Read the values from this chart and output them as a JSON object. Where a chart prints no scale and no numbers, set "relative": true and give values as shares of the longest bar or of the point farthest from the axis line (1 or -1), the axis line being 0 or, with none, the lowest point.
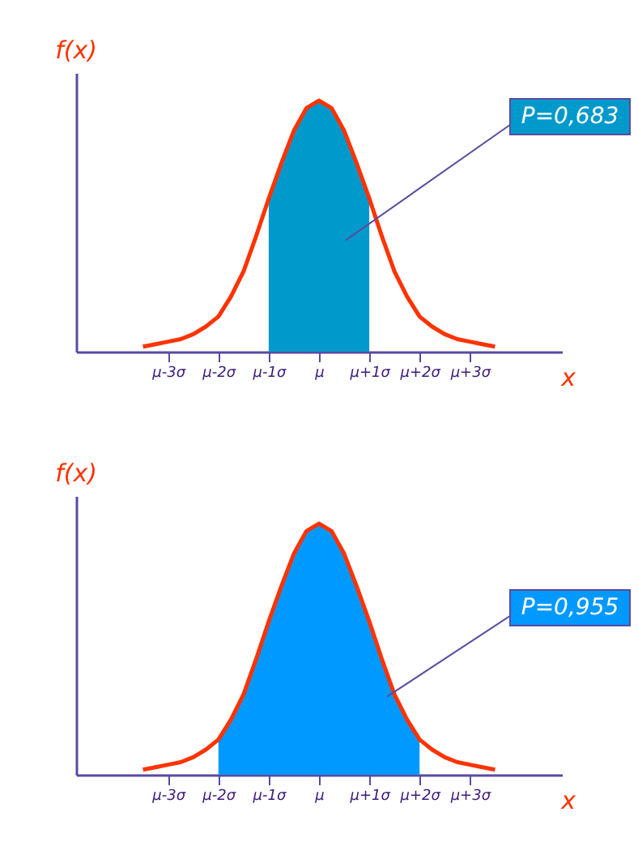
{
  "chart_data": [
    {
      "type": "line",
      "relative": true,
      "xlabel": "x",
      "ylabel": "f(x)",
      "grid": false,
      "categories": [
        null,
        null,
        "μ-3σ",
        null,
        null,
        null,
        "μ-2σ",
        null,
        null,
        null,
        "μ-1σ",
        null,
        null,
        null,
        "μ",
        null,
        null,
        null,
        "μ+1σ",
        null,
        null,
        null,
        "μ+2σ",
        null,
        null,
        null,
        "μ+3σ",
        null,
        null
      ],
      "series": [
        {
          "type": "area",
          "color": "#0099cc",
          "values": [
            null,
            null,
            null,
            null,
            null,
            null,
            null,
            null,
            null,
            null,
            0.61,
            0.75,
            0.88,
            0.97,
            1,
            0.97,
            0.88,
            0.75,
            0.61,
            null,
            null,
            null,
            null,
            null,
            null,
            null,
            null,
            null,
            null
          ]
        },
        {
          "color": "#ff3300",
          "values": [
            0.02,
            0.03,
            0.04,
            0.05,
            0.07,
            0.1,
            0.14,
            0.22,
            0.32,
            0.46,
            0.61,
            0.75,
            0.88,
            0.97,
            1,
            0.97,
            0.88,
            0.75,
            0.61,
            0.46,
            0.32,
            0.22,
            0.14,
            0.1,
            0.07,
            0.05,
            0.04,
            0.03,
            0.02
          ]
        }
      ],
      "annotations": [
        "P=0,683"
      ]
    },
    {
      "type": "line",
      "relative": true,
      "xlabel": "x",
      "ylabel": "f(x)",
      "grid": false,
      "categories": [
        null,
        null,
        "μ-3σ",
        null,
        null,
        null,
        "μ-2σ",
        null,
        null,
        null,
        "μ-1σ",
        null,
        null,
        null,
        "μ",
        null,
        null,
        null,
        "μ+1σ",
        null,
        null,
        null,
        "μ+2σ",
        null,
        null,
        null,
        "μ+3σ",
        null,
        null
      ],
      "series": [
        {
          "type": "area",
          "color": "#0099ff",
          "values": [
            null,
            null,
            null,
            null,
            null,
            null,
            0.14,
            0.22,
            0.32,
            0.46,
            0.61,
            0.75,
            0.88,
            0.97,
            1,
            0.97,
            0.88,
            0.75,
            0.61,
            0.46,
            0.32,
            0.22,
            0.14,
            null,
            null,
            null,
            null,
            null,
            null
          ]
        },
        {
          "color": "#ff3300",
          "values": [
            0.02,
            0.03,
            0.04,
            0.05,
            0.07,
            0.1,
            0.14,
            0.22,
            0.32,
            0.46,
            0.61,
            0.75,
            0.88,
            0.97,
            1,
            0.97,
            0.88,
            0.75,
            0.61,
            0.46,
            0.32,
            0.22,
            0.14,
            0.1,
            0.07,
            0.05,
            0.04,
            0.03,
            0.02
          ]
        }
      ],
      "annotations": [
        "P=0,955"
      ]
    }
  ]
}
